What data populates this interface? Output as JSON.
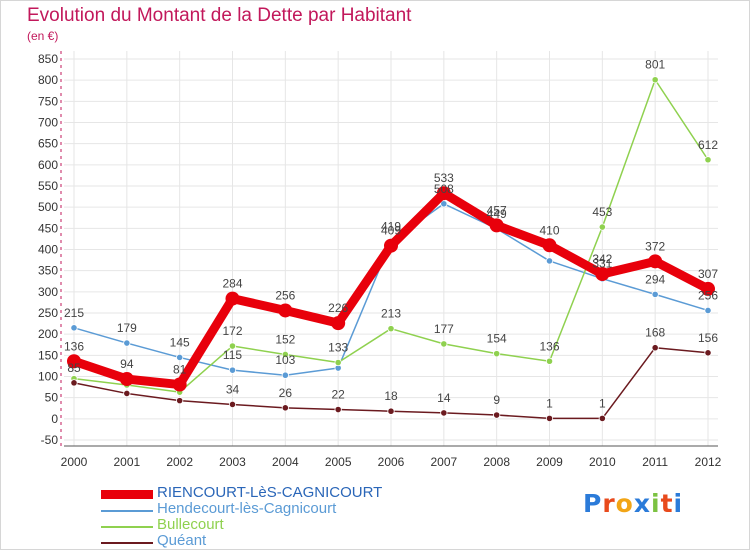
{
  "title": "Evolution du Montant de la Dette par Habitant",
  "unit_label": "(en €)",
  "brand": {
    "letters": [
      "P",
      "r",
      "o",
      "x",
      "i",
      "t",
      "i"
    ],
    "colors": [
      "#2b7bd9",
      "#e84a1c",
      "#f2a516",
      "#2b7bd9",
      "#7cc242",
      "#e84a1c",
      "#2b7bd9"
    ]
  },
  "colors": {
    "title": "#c2185b",
    "axis": "#333333",
    "grid": "#e6e6e6"
  },
  "chart_data": {
    "type": "line",
    "x": [
      "2000",
      "2001",
      "2002",
      "2003",
      "2004",
      "2005",
      "2006",
      "2007",
      "2008",
      "2009",
      "2010",
      "2011",
      "2012"
    ],
    "ylim": [
      -50,
      850
    ],
    "yticks": [
      "-50",
      "0",
      "50",
      "100",
      "150",
      "200",
      "250",
      "300",
      "350",
      "400",
      "450",
      "500",
      "550",
      "600",
      "650",
      "700",
      "750",
      "800",
      "850"
    ],
    "grid": true,
    "legend": "bottom-left",
    "series": [
      {
        "name": "Hendecourt-lès-Cagnicourt",
        "color": "#5b9bd5",
        "values": [
          215,
          179,
          145,
          115,
          103,
          120,
          419,
          508,
          449,
          373,
          331,
          294,
          256
        ],
        "labels": [
          "215",
          "179",
          "145",
          "115",
          "103",
          "",
          "419",
          "508",
          "449",
          "",
          "331",
          "294",
          "256"
        ]
      },
      {
        "name": "Bullecourt",
        "color": "#8fd14f",
        "values": [
          95,
          80,
          63,
          172,
          152,
          133,
          213,
          177,
          154,
          136,
          453,
          801,
          612
        ],
        "labels": [
          "",
          "",
          "",
          "172",
          "152",
          "133",
          "213",
          "177",
          "154",
          "136",
          "453",
          "801",
          "612"
        ]
      },
      {
        "name": "Quéant",
        "color": "#6b1a1f",
        "values": [
          85,
          60,
          43,
          34,
          26,
          22,
          18,
          14,
          9,
          1,
          1,
          168,
          156
        ],
        "labels": [
          "85",
          "",
          "",
          "34",
          "26",
          "22",
          "18",
          "14",
          "9",
          "1",
          "1",
          "168",
          "156"
        ]
      },
      {
        "name": "RIENCOURT-LèS-CAGNICOURT",
        "color": "#e8000b",
        "values": [
          136,
          94,
          81,
          284,
          256,
          226,
          409,
          533,
          457,
          410,
          342,
          372,
          307
        ],
        "labels": [
          "136",
          "94",
          "81",
          "284",
          "256",
          "226",
          "409",
          "533",
          "457",
          "410",
          "342",
          "372",
          "307"
        ]
      }
    ],
    "legend_entries": [
      {
        "name": "RIENCOURT-LèS-CAGNICOURT",
        "color": "#e8000b",
        "thick": true
      },
      {
        "name": "Hendecourt-lès-Cagnicourt",
        "color": "#5b9bd5",
        "thick": false
      },
      {
        "name": "Bullecourt",
        "color": "#8fd14f",
        "thick": false
      },
      {
        "name": "Quéant",
        "color": "#6b1a1f",
        "thick": false
      }
    ]
  }
}
